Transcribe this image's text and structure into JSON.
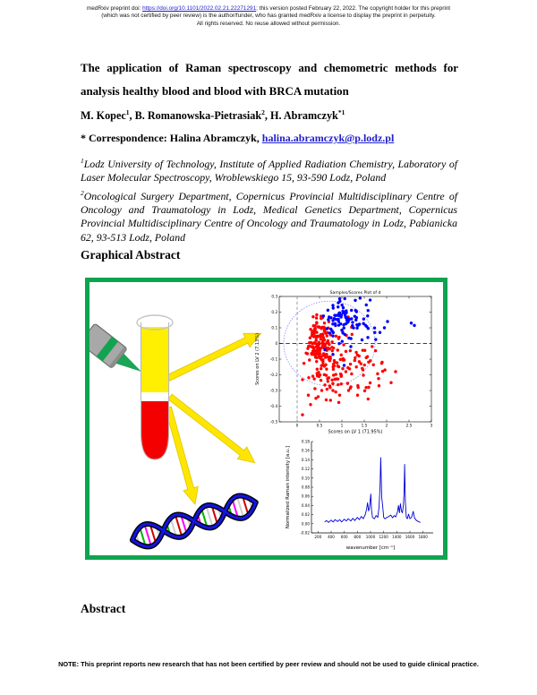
{
  "colors": {
    "figure_border": "#0ea44f",
    "link_blue": "#2020cc",
    "plasma_yellow": "#ffef00",
    "blood_red": "#f50000",
    "arrow_yellow": "#ffe600",
    "arrow_edge": "#dfc400",
    "laser_gray": "#a8a8a8",
    "laser_green": "#12a351",
    "beam_green": "#1ba556",
    "scatter_red": "#ff0000",
    "scatter_blue": "#0000ff",
    "ellipse_blue": "#8888ff",
    "spectrum_blue": "#0000d6"
  },
  "header": {
    "line1_pre": "medRxiv preprint doi: ",
    "doi": "https://doi.org/10.1101/2022.02.21.22271291",
    "line1_post": "; this version posted February 22, 2022. The copyright holder for this preprint",
    "line2": "(which was not certified by peer review) is the author/funder, who has granted medRxiv a license to display the preprint in perpetuity.",
    "line3": "All rights reserved. No reuse allowed without permission."
  },
  "article": {
    "title": "The application of Raman spectroscopy and chemometric methods for analysis healthy blood and blood with BRCA mutation",
    "authors": {
      "name1": "M. Kopec",
      "sup1": "1",
      "sep1": ", ",
      "name2": "B. Romanowska-Pietrasiak",
      "sup2": "2",
      "sep2": ", ",
      "name3": "H. Abramczyk",
      "sup3": "*1"
    },
    "correspondence": {
      "label": "* Correspondence: Halina Abramczyk, ",
      "email": "halina.abramczyk@p.lodz.pl"
    },
    "affiliations": [
      {
        "sup": "1",
        "text": "Lodz University of Technology, Institute of Applied Radiation Chemistry, Laboratory of Laser Molecular Spectroscopy, Wroblewskiego 15, 93-590 Lodz, Poland"
      },
      {
        "sup": "2",
        "text": "Oncological Surgery Department, Copernicus Provincial Multidisciplinary Centre of Oncology and Traumatology in Lodz, Medical Genetics Department, Copernicus Provincial Multidisciplinary Centre of Oncology and Traumatology in Lodz, Pabianicka 62, 93-513 Lodz, Poland"
      }
    ],
    "headings": {
      "graphical_abstract": "Graphical Abstract",
      "abstract": "Abstract"
    }
  },
  "note": {
    "text": "NOTE: This preprint reports new research that has not been certified by peer review and should not be used to guide clinical practice."
  },
  "chart_data": [
    {
      "type": "scatter",
      "title": "Samples/Scores Plot of d",
      "xlabel": "Scores on LV 1 (71.95%)",
      "ylabel": "Scores on LV 2 (7.13%)",
      "xlim": [
        -0.4,
        3.0
      ],
      "ylim": [
        -0.5,
        0.3
      ],
      "xticks": [
        0,
        0.5,
        1,
        1.5,
        2,
        2.5,
        3
      ],
      "yticks": [
        0.3,
        0.2,
        0.1,
        0,
        -0.1,
        -0.2,
        -0.3,
        -0.4,
        -0.5
      ],
      "grid": false,
      "legend": "none",
      "zero_lines": {
        "horizontal_y": 0,
        "vertical_x": 0
      },
      "confidence_ellipse": {
        "cx": 0.72,
        "cy": 0.0,
        "rx": 1.02,
        "ry": 0.27
      },
      "seed": 42,
      "series": [
        {
          "name": "red-group",
          "color": "#ff0000",
          "clusters": [
            {
              "n": 120,
              "cx": 0.47,
              "cy": 0.02,
              "sx": 0.13,
              "sy": 0.075
            },
            {
              "n": 110,
              "cx": 0.8,
              "cy": -0.12,
              "sx": 0.3,
              "sy": 0.1
            },
            {
              "n": 30,
              "cx": 1.5,
              "cy": -0.17,
              "sx": 0.3,
              "sy": 0.08
            }
          ],
          "points": [
            [
              0.12,
              -0.455
            ],
            [
              0.3,
              -0.39
            ],
            [
              0.42,
              -0.35
            ],
            [
              0.25,
              -0.33
            ],
            [
              0.55,
              -0.3
            ],
            [
              0.65,
              -0.36
            ],
            [
              0.8,
              -0.3
            ],
            [
              0.95,
              -0.33
            ],
            [
              1.15,
              -0.3
            ],
            [
              1.35,
              -0.33
            ],
            [
              1.6,
              -0.28
            ],
            [
              2.1,
              -0.25
            ],
            [
              1.9,
              -0.12
            ],
            [
              2.2,
              -0.18
            ]
          ]
        },
        {
          "name": "blue-group",
          "color": "#0000ff",
          "clusters": [
            {
              "n": 60,
              "cx": 0.95,
              "cy": 0.16,
              "sx": 0.17,
              "sy": 0.055
            },
            {
              "n": 32,
              "cx": 1.3,
              "cy": 0.12,
              "sx": 0.27,
              "sy": 0.075
            }
          ],
          "points": [
            [
              2.55,
              0.13
            ],
            [
              2.62,
              0.115
            ],
            [
              1.95,
              0.1
            ],
            [
              2.02,
              0.14
            ],
            [
              1.85,
              0.07
            ],
            [
              0.8,
              -0.07
            ],
            [
              1.05,
              -0.14
            ],
            [
              0.62,
              -0.04
            ],
            [
              1.2,
              -0.02
            ],
            [
              0.95,
              0.285
            ],
            [
              1.3,
              0.275
            ]
          ]
        }
      ]
    },
    {
      "type": "line",
      "title": "",
      "xlabel": "wavenumber [cm⁻¹]",
      "ylabel": "Normalized Raman intensity [a.u.]",
      "xlim": [
        100,
        1900
      ],
      "ylim": [
        -0.02,
        0.18
      ],
      "xticks": [
        200,
        400,
        600,
        800,
        1000,
        1200,
        1400,
        1600,
        1800
      ],
      "yticks": [
        0.18,
        0.16,
        0.14,
        0.12,
        0.1,
        0.08,
        0.06,
        0.04,
        0.02,
        0.0,
        -0.02
      ],
      "color": "#0000d6",
      "x": [
        300,
        330,
        360,
        400,
        430,
        460,
        500,
        530,
        560,
        600,
        630,
        660,
        700,
        730,
        760,
        800,
        830,
        860,
        890,
        920,
        940,
        955,
        970,
        985,
        1004,
        1015,
        1030,
        1060,
        1085,
        1110,
        1130,
        1145,
        1156,
        1170,
        1185,
        1200,
        1220,
        1250,
        1280,
        1310,
        1335,
        1360,
        1385,
        1410,
        1425,
        1440,
        1455,
        1470,
        1485,
        1500,
        1512,
        1520,
        1530,
        1545,
        1560,
        1580,
        1600,
        1625,
        1650,
        1670,
        1700,
        1730,
        1760
      ],
      "y": [
        0.004,
        0.007,
        0.003,
        0.008,
        0.004,
        0.009,
        0.005,
        0.009,
        0.004,
        0.01,
        0.006,
        0.011,
        0.006,
        0.012,
        0.007,
        0.014,
        0.009,
        0.016,
        0.011,
        0.02,
        0.032,
        0.046,
        0.028,
        0.035,
        0.065,
        0.03,
        0.014,
        0.011,
        0.018,
        0.014,
        0.036,
        0.08,
        0.145,
        0.058,
        0.038,
        0.014,
        0.011,
        0.014,
        0.016,
        0.019,
        0.013,
        0.018,
        0.015,
        0.026,
        0.04,
        0.024,
        0.044,
        0.028,
        0.024,
        0.04,
        0.07,
        0.13,
        0.048,
        0.014,
        0.011,
        0.021,
        0.011,
        0.014,
        0.027,
        0.013,
        0.007,
        0.005,
        0.003
      ]
    }
  ]
}
